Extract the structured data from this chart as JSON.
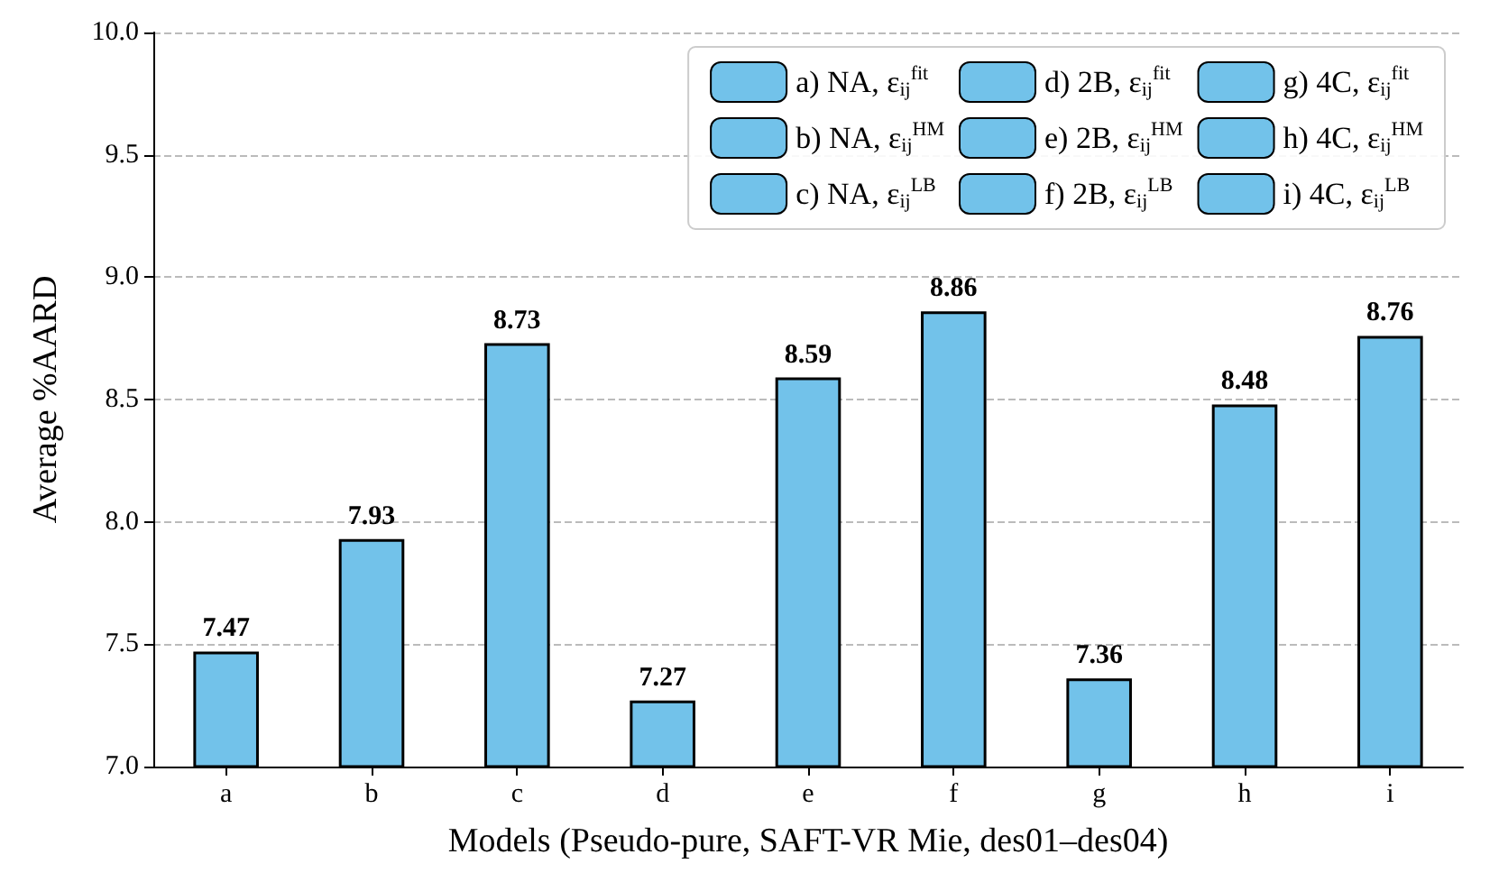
{
  "chart_data": {
    "type": "bar",
    "xlabel": "Models (Pseudo-pure, SAFT-VR Mie, des01–des04)",
    "ylabel": "Average %AARD",
    "categories": [
      "a",
      "b",
      "c",
      "d",
      "e",
      "f",
      "g",
      "h",
      "i"
    ],
    "series": [
      {
        "name": "a) NA, ε$_{ij}$$^{fit}$",
        "color": "#72c2ea",
        "values": [
          7.47,
          null,
          null,
          null,
          null,
          null,
          null,
          null,
          null
        ]
      },
      {
        "name": "b) NA, ε$_{ij}$$^{HM}$",
        "color": "#72c2ea",
        "values": [
          null,
          7.93,
          null,
          null,
          null,
          null,
          null,
          null,
          null
        ]
      },
      {
        "name": "c) NA, ε$_{ij}$$^{LB}$",
        "color": "#72c2ea",
        "values": [
          null,
          null,
          8.73,
          null,
          null,
          null,
          null,
          null,
          null
        ]
      },
      {
        "name": "d) 2B, ε$_{ij}$$^{fit}$",
        "color": "#72c2ea",
        "values": [
          null,
          null,
          null,
          7.27,
          null,
          null,
          null,
          null,
          null
        ]
      },
      {
        "name": "e) 2B, ε$_{ij}$$^{HM}$",
        "color": "#72c2ea",
        "values": [
          null,
          null,
          null,
          null,
          8.59,
          null,
          null,
          null,
          null
        ]
      },
      {
        "name": "f) 2B, ε$_{ij}$$^{LB}$",
        "color": "#72c2ea",
        "values": [
          null,
          null,
          null,
          null,
          null,
          8.86,
          null,
          null,
          null
        ]
      },
      {
        "name": "g) 4C, ε$_{ij}$$^{fit}$",
        "color": "#72c2ea",
        "values": [
          null,
          null,
          null,
          null,
          null,
          null,
          7.36,
          null,
          null
        ]
      },
      {
        "name": "h) 4C, ε$_{ij}$$^{HM}$",
        "color": "#72c2ea",
        "values": [
          null,
          null,
          null,
          null,
          null,
          null,
          null,
          8.48,
          null
        ]
      },
      {
        "name": "i) 4C, ε$_{ij}$$^{LB}$",
        "color": "#72c2ea",
        "values": [
          null,
          null,
          null,
          null,
          null,
          null,
          null,
          null,
          8.76
        ]
      }
    ],
    "ylim": [
      7.0,
      10.0
    ],
    "yticks": [
      {
        "value": 7.0,
        "label": "7.0"
      },
      {
        "value": 7.5,
        "label": "7.5"
      },
      {
        "value": 8.0,
        "label": "8.0"
      },
      {
        "value": 8.5,
        "label": "8.5"
      },
      {
        "value": 9.0,
        "label": "9.0"
      },
      {
        "value": 9.5,
        "label": "9.5"
      },
      {
        "value": 10.0,
        "label": "10.0"
      }
    ],
    "grid": "y",
    "legend": "top right",
    "data_labels": true
  }
}
